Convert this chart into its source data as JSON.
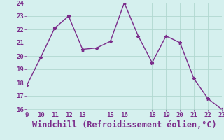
{
  "x": [
    9,
    10,
    11,
    12,
    13,
    14,
    15,
    16,
    17,
    18,
    19,
    20,
    21,
    22,
    23
  ],
  "y": [
    17.8,
    19.9,
    22.1,
    23.0,
    20.5,
    20.6,
    21.1,
    24.0,
    21.5,
    19.5,
    21.5,
    21.0,
    18.3,
    16.8,
    16.0
  ],
  "xlim": [
    9,
    23
  ],
  "ylim": [
    16,
    24
  ],
  "xticks": [
    9,
    10,
    11,
    12,
    13,
    15,
    16,
    18,
    19,
    20,
    21,
    22,
    23
  ],
  "yticks": [
    16,
    17,
    18,
    19,
    20,
    21,
    22,
    23,
    24
  ],
  "xlabel": "Windchill (Refroidissement éolien,°C)",
  "line_color": "#7b2d8b",
  "marker": "*",
  "marker_size": 3.5,
  "bg_color": "#d5f0ee",
  "grid_color": "#b0d8d0",
  "tick_label_color": "#7b2d8b",
  "xlabel_color": "#7b2d8b",
  "tick_fontsize": 6.5,
  "xlabel_fontsize": 8.5,
  "linewidth": 1.0
}
